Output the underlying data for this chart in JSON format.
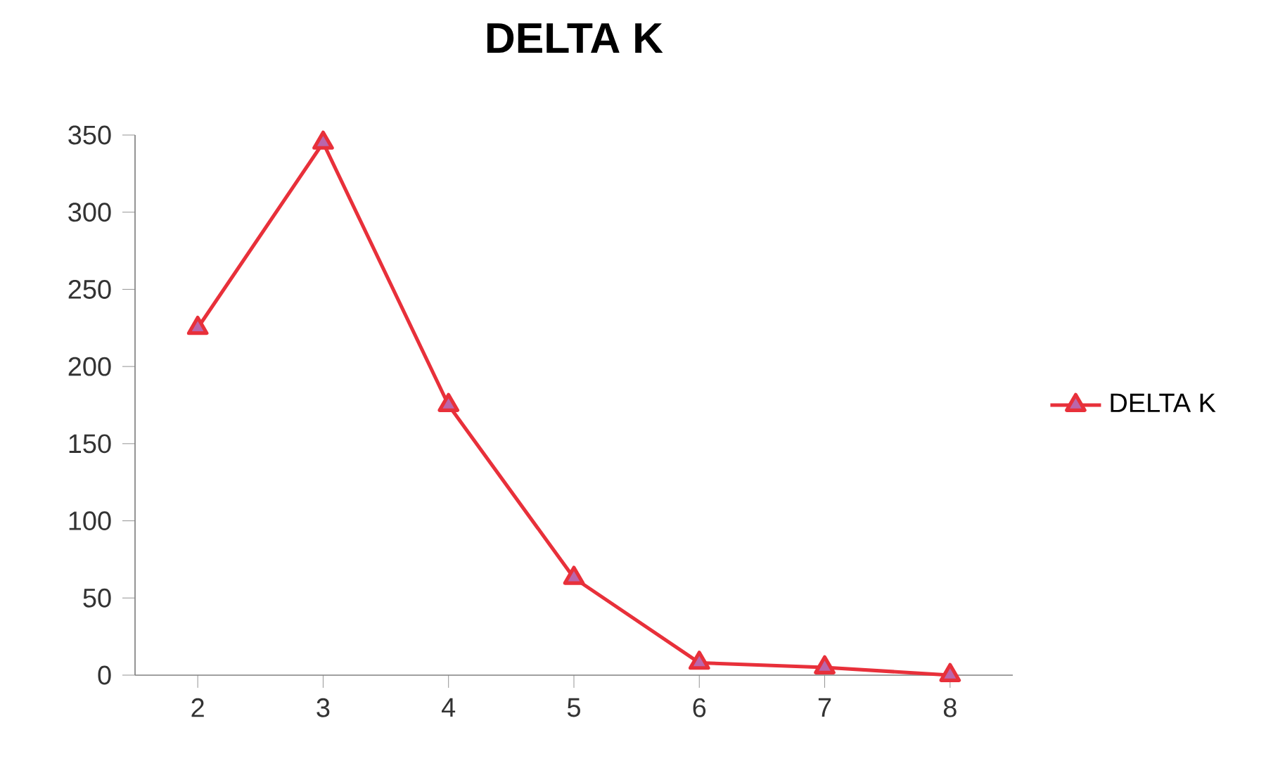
{
  "chart_data": {
    "type": "line",
    "title": "DELTA K",
    "categories": [
      "2",
      "3",
      "4",
      "5",
      "6",
      "7",
      "8"
    ],
    "series": [
      {
        "name": "DELTA K",
        "color": "#e8303a",
        "values": [
          225,
          345,
          175,
          63,
          8,
          5,
          0
        ]
      }
    ],
    "ylim": [
      0,
      350
    ],
    "yticks": [
      0,
      50,
      100,
      150,
      200,
      250,
      300,
      350
    ],
    "marker": "triangle",
    "legend": "right",
    "grid": false
  }
}
